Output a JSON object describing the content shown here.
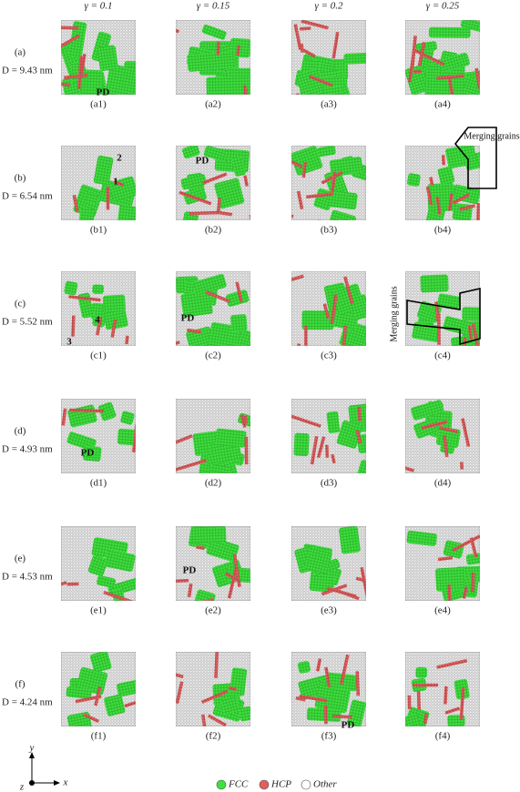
{
  "column_headers": [
    "γ = 0.1",
    "γ = 0.15",
    "γ = 0.2",
    "γ = 0.25"
  ],
  "rows": [
    {
      "label": "(a)",
      "size": "D = 9.43 nm",
      "panels": [
        "(a1)",
        "(a2)",
        "(a3)",
        "(a4)"
      ]
    },
    {
      "label": "(b)",
      "size": "D = 6.54 nm",
      "panels": [
        "(b1)",
        "(b2)",
        "(b3)",
        "(b4)"
      ]
    },
    {
      "label": "(c)",
      "size": "D = 5.52 nm",
      "panels": [
        "(c1)",
        "(c2)",
        "(c3)",
        "(c4)"
      ]
    },
    {
      "label": "(d)",
      "size": "D = 4.93 nm",
      "panels": [
        "(d1)",
        "(d2)",
        "(d3)",
        "(d4)"
      ]
    },
    {
      "label": "(e)",
      "size": "D = 4.53 nm",
      "panels": [
        "(e1)",
        "(e2)",
        "(e3)",
        "(e4)"
      ]
    },
    {
      "label": "(f)",
      "size": "D = 4.24 nm",
      "panels": [
        "(f1)",
        "(f2)",
        "(f3)",
        "(f4)"
      ]
    }
  ],
  "annotations": [
    "PD",
    "2",
    "1",
    "PD",
    "Merging grains",
    "4",
    "3",
    "PD",
    "Merging grains",
    "PD",
    "PD",
    "PD"
  ],
  "legend": [
    "FCC",
    "HCP",
    "Other"
  ],
  "axes": [
    "y",
    "x",
    "z"
  ]
}
